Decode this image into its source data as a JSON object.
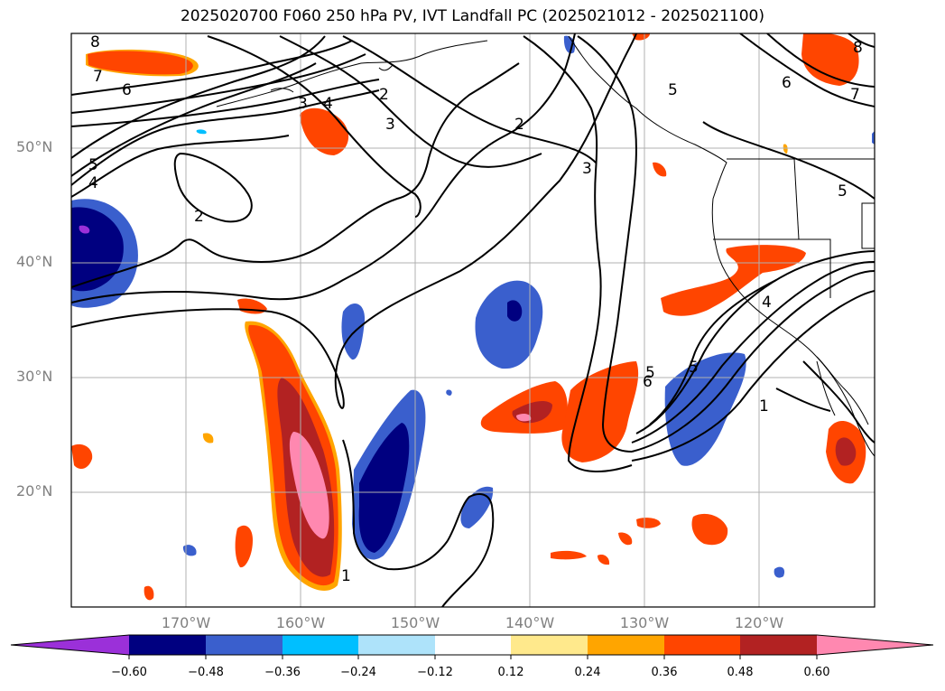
{
  "title": "2025020700 F060 250 hPa PV, IVT Landfall PC (2025021012 - 2025021100)",
  "lat_labels": [
    "50°N",
    "40°N",
    "30°N",
    "20°N"
  ],
  "lon_labels": [
    "170°W",
    "160°W",
    "150°W",
    "140°W",
    "130°W",
    "120°W"
  ],
  "colorbar": {
    "ticks": [
      "−0.60",
      "−0.48",
      "−0.36",
      "−0.24",
      "−0.12",
      "0.12",
      "0.24",
      "0.36",
      "0.48",
      "0.60"
    ],
    "colors": [
      "#9b30d9",
      "#000080",
      "#3a5fcd",
      "#00bfff",
      "#aee3fa",
      "#ffffff",
      "#ffe98c",
      "#ffa500",
      "#ff4500",
      "#b22222",
      "#ff88b0"
    ]
  },
  "contour_labels": [
    "8",
    "7",
    "6",
    "5",
    "4",
    "2",
    "3",
    "2",
    "3",
    "2",
    "3",
    "4",
    "5",
    "6",
    "7",
    "8",
    "5",
    "6",
    "5",
    "4",
    "1",
    "5",
    "1"
  ],
  "extent": {
    "lon": [
      -180,
      -110
    ],
    "lat": [
      10,
      60
    ]
  }
}
